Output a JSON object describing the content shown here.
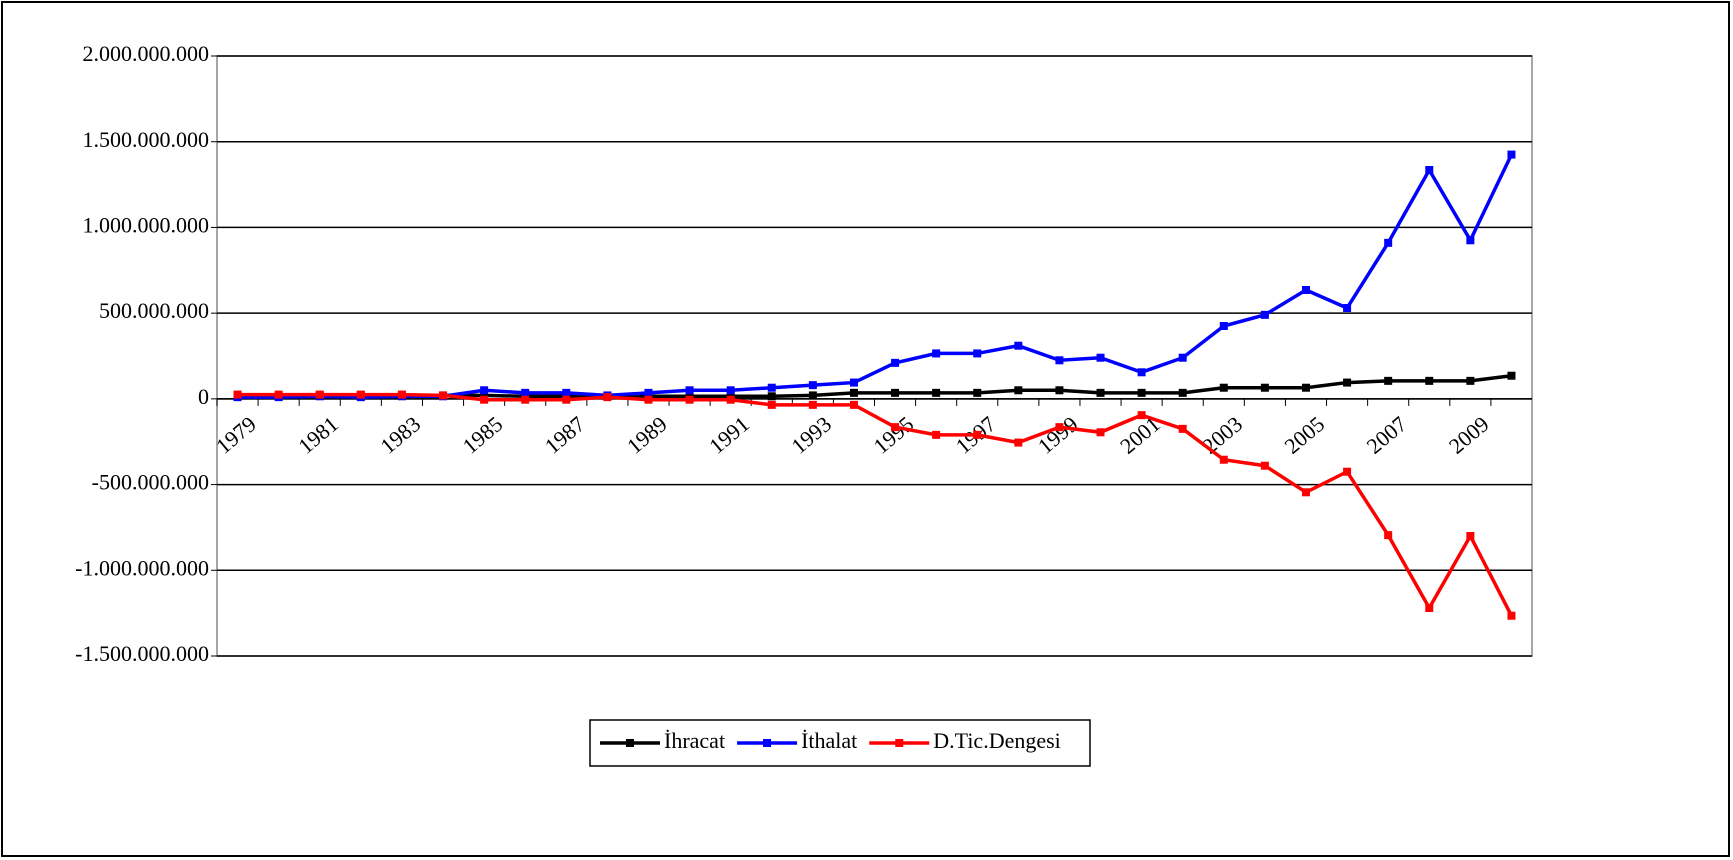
{
  "chart_data": {
    "type": "line",
    "categories": [
      "1979",
      null,
      "1981",
      null,
      "1983",
      null,
      "1985",
      null,
      "1987",
      null,
      "1989",
      null,
      "1991",
      null,
      "1993",
      null,
      "1995",
      null,
      "1997",
      null,
      "1999",
      null,
      "2001",
      null,
      "2003",
      null,
      "2005",
      null,
      "2007",
      null,
      "2009",
      null
    ],
    "series": [
      {
        "name": "İhracat",
        "color": "#000000",
        "values": [
          15000000,
          15000000,
          20000000,
          20000000,
          20000000,
          20000000,
          20000000,
          15000000,
          15000000,
          15000000,
          15000000,
          15000000,
          15000000,
          15000000,
          20000000,
          35000000,
          35000000,
          35000000,
          35000000,
          50000000,
          50000000,
          35000000,
          35000000,
          35000000,
          65000000,
          65000000,
          65000000,
          95000000,
          105000000,
          105000000,
          105000000,
          135000000
        ]
      },
      {
        "name": "İthalat",
        "color": "#0000ff",
        "values": [
          10000000,
          10000000,
          15000000,
          10000000,
          15000000,
          15000000,
          50000000,
          35000000,
          35000000,
          20000000,
          35000000,
          50000000,
          50000000,
          65000000,
          80000000,
          95000000,
          210000000,
          265000000,
          265000000,
          310000000,
          225000000,
          240000000,
          155000000,
          240000000,
          425000000,
          490000000,
          635000000,
          530000000,
          910000000,
          1335000000,
          925000000,
          1425000000
        ]
      },
      {
        "name": "D.Tic.Dengesi",
        "color": "#ff0000",
        "values": [
          25000000,
          25000000,
          25000000,
          25000000,
          25000000,
          20000000,
          -5000000,
          -5000000,
          -5000000,
          10000000,
          -5000000,
          -5000000,
          -5000000,
          -35000000,
          -35000000,
          -35000000,
          -165000000,
          -210000000,
          -210000000,
          -255000000,
          -165000000,
          -195000000,
          -95000000,
          -175000000,
          -355000000,
          -390000000,
          -545000000,
          -425000000,
          -795000000,
          -1220000000,
          -800000000,
          -1265000000
        ]
      }
    ],
    "ylim": [
      -1500000000,
      2000000000
    ],
    "yticks": [
      {
        "value": -1500000000,
        "label": "-1.500.000.000"
      },
      {
        "value": -1000000000,
        "label": "-1.000.000.000"
      },
      {
        "value": -500000000,
        "label": "-500.000.000"
      },
      0,
      {
        "value": 500000000,
        "label": "500.000.000"
      },
      {
        "value": 1000000000,
        "label": "1.000.000.000"
      },
      {
        "value": 1500000000,
        "label": "1.500.000.000"
      },
      {
        "value": 2000000000,
        "label": "2.000.000.000"
      }
    ],
    "grid": true,
    "legend": "bottom"
  }
}
